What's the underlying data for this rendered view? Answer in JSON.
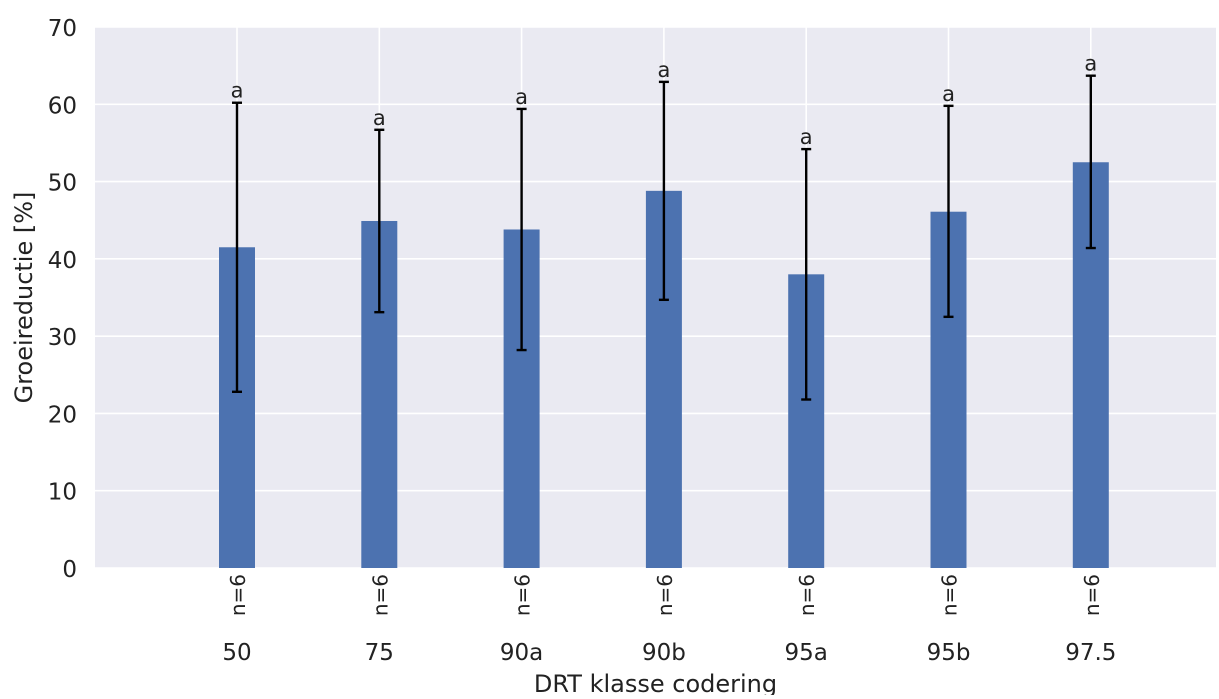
{
  "chart_data": {
    "type": "bar",
    "title": "",
    "xlabel": "DRT klasse codering",
    "ylabel": "Groeireductie [%]",
    "ylim": [
      0,
      70
    ],
    "yticks": [
      "0",
      "10",
      "20",
      "30",
      "40",
      "50",
      "60",
      "70"
    ],
    "categories": [
      "50",
      "75",
      "90a",
      "90b",
      "95a",
      "95b",
      "97.5"
    ],
    "values": [
      41.5,
      44.9,
      43.8,
      48.8,
      38.0,
      46.1,
      52.5
    ],
    "error_low": [
      22.8,
      33.1,
      28.2,
      34.7,
      21.8,
      32.5,
      41.4
    ],
    "error_high": [
      60.2,
      56.7,
      59.4,
      62.9,
      54.2,
      59.8,
      63.7
    ],
    "group_letters": [
      "a",
      "a",
      "a",
      "a",
      "a",
      "a",
      "a"
    ],
    "n_labels": [
      "n=6",
      "n=6",
      "n=6",
      "n=6",
      "n=6",
      "n=6",
      "n=6"
    ],
    "grid": true,
    "legend": "none",
    "colors": {
      "bar": "#4c72b0",
      "plot_background": "#eaeaf2",
      "grid": "#ffffff",
      "errorbar": "#000000"
    }
  }
}
